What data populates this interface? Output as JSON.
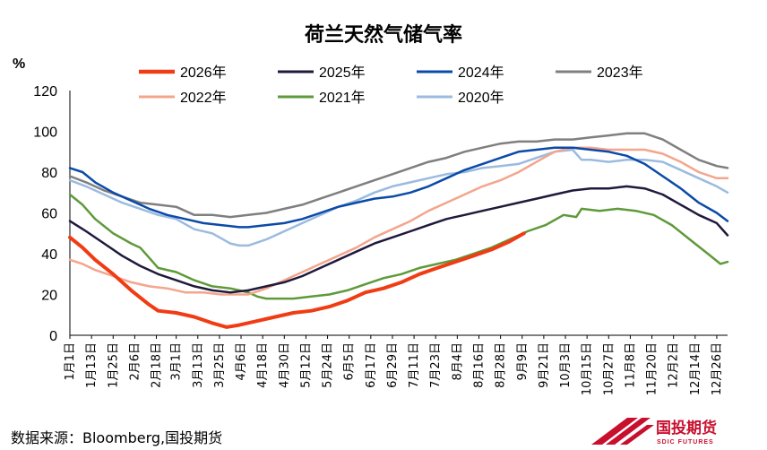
{
  "chart_data": {
    "type": "line",
    "title": "荷兰天然气储气率",
    "ylabel": "%",
    "ylim": [
      0,
      120
    ],
    "yticks": [
      0,
      20,
      40,
      60,
      80,
      100,
      120
    ],
    "x_ticks": [
      "1月1日",
      "1月13日",
      "1月25日",
      "2月6日",
      "2月18日",
      "3月1日",
      "3月13日",
      "3月25日",
      "4月6日",
      "4月18日",
      "4月30日",
      "5月12日",
      "5月24日",
      "6月5日",
      "6月17日",
      "6月29日",
      "7月11日",
      "7月23日",
      "8月4日",
      "8月16日",
      "8月28日",
      "9月9日",
      "9月21日",
      "10月3日",
      "10月15日",
      "10月27日",
      "11月8日",
      "11月20日",
      "12月2日",
      "12月14日",
      "12月26日"
    ],
    "x_tick_days": [
      1,
      13,
      25,
      37,
      49,
      60,
      72,
      84,
      96,
      108,
      120,
      132,
      144,
      156,
      168,
      180,
      192,
      204,
      216,
      228,
      240,
      252,
      264,
      276,
      288,
      300,
      312,
      324,
      336,
      348,
      360
    ],
    "legend_placement": "top",
    "grid": false,
    "series": [
      {
        "name": "2026年",
        "color": "#f03c14",
        "width": 4,
        "points": [
          [
            1,
            48
          ],
          [
            8,
            43
          ],
          [
            15,
            37
          ],
          [
            25,
            30
          ],
          [
            35,
            22
          ],
          [
            45,
            15
          ],
          [
            50,
            12
          ],
          [
            60,
            11
          ],
          [
            70,
            9
          ],
          [
            80,
            6
          ],
          [
            88,
            4
          ],
          [
            95,
            5
          ],
          [
            105,
            7
          ],
          [
            115,
            9
          ],
          [
            125,
            11
          ],
          [
            135,
            12
          ],
          [
            145,
            14
          ],
          [
            155,
            17
          ],
          [
            165,
            21
          ],
          [
            175,
            23
          ],
          [
            185,
            26
          ],
          [
            195,
            30
          ],
          [
            205,
            33
          ],
          [
            215,
            36
          ],
          [
            225,
            39
          ],
          [
            235,
            42
          ],
          [
            245,
            46
          ],
          [
            253,
            50
          ]
        ]
      },
      {
        "name": "2025年",
        "color": "#1f1a3c",
        "width": 2.5,
        "points": [
          [
            1,
            56
          ],
          [
            10,
            51
          ],
          [
            20,
            45
          ],
          [
            30,
            39
          ],
          [
            40,
            34
          ],
          [
            50,
            30
          ],
          [
            60,
            27
          ],
          [
            70,
            24
          ],
          [
            80,
            22
          ],
          [
            90,
            21
          ],
          [
            100,
            22
          ],
          [
            110,
            24
          ],
          [
            120,
            26
          ],
          [
            130,
            29
          ],
          [
            140,
            33
          ],
          [
            150,
            37
          ],
          [
            160,
            41
          ],
          [
            170,
            45
          ],
          [
            180,
            48
          ],
          [
            190,
            51
          ],
          [
            200,
            54
          ],
          [
            210,
            57
          ],
          [
            220,
            59
          ],
          [
            230,
            61
          ],
          [
            240,
            63
          ],
          [
            250,
            65
          ],
          [
            260,
            67
          ],
          [
            270,
            69
          ],
          [
            280,
            71
          ],
          [
            290,
            72
          ],
          [
            300,
            72
          ],
          [
            310,
            73
          ],
          [
            320,
            72
          ],
          [
            330,
            69
          ],
          [
            340,
            64
          ],
          [
            350,
            59
          ],
          [
            360,
            55
          ],
          [
            366,
            49
          ]
        ]
      },
      {
        "name": "2024年",
        "color": "#0b4aa8",
        "width": 2.5,
        "points": [
          [
            1,
            82
          ],
          [
            8,
            80
          ],
          [
            15,
            75
          ],
          [
            25,
            70
          ],
          [
            35,
            66
          ],
          [
            45,
            62
          ],
          [
            55,
            59
          ],
          [
            65,
            57
          ],
          [
            75,
            55
          ],
          [
            85,
            54
          ],
          [
            95,
            53
          ],
          [
            100,
            53
          ],
          [
            110,
            54
          ],
          [
            120,
            55
          ],
          [
            130,
            57
          ],
          [
            140,
            60
          ],
          [
            150,
            63
          ],
          [
            160,
            65
          ],
          [
            170,
            67
          ],
          [
            180,
            68
          ],
          [
            190,
            70
          ],
          [
            200,
            73
          ],
          [
            210,
            77
          ],
          [
            220,
            81
          ],
          [
            230,
            84
          ],
          [
            240,
            87
          ],
          [
            250,
            90
          ],
          [
            260,
            91
          ],
          [
            270,
            92
          ],
          [
            280,
            92
          ],
          [
            290,
            91
          ],
          [
            300,
            90
          ],
          [
            310,
            88
          ],
          [
            320,
            84
          ],
          [
            330,
            78
          ],
          [
            340,
            72
          ],
          [
            350,
            65
          ],
          [
            360,
            60
          ],
          [
            366,
            56
          ]
        ]
      },
      {
        "name": "2023年",
        "color": "#7f7f7f",
        "width": 2.5,
        "points": [
          [
            1,
            78
          ],
          [
            10,
            75
          ],
          [
            20,
            71
          ],
          [
            30,
            68
          ],
          [
            40,
            65
          ],
          [
            50,
            64
          ],
          [
            60,
            63
          ],
          [
            70,
            59
          ],
          [
            80,
            59
          ],
          [
            90,
            58
          ],
          [
            100,
            59
          ],
          [
            110,
            60
          ],
          [
            120,
            62
          ],
          [
            130,
            64
          ],
          [
            140,
            67
          ],
          [
            150,
            70
          ],
          [
            160,
            73
          ],
          [
            170,
            76
          ],
          [
            180,
            79
          ],
          [
            190,
            82
          ],
          [
            200,
            85
          ],
          [
            210,
            87
          ],
          [
            220,
            90
          ],
          [
            230,
            92
          ],
          [
            240,
            94
          ],
          [
            250,
            95
          ],
          [
            260,
            95
          ],
          [
            270,
            96
          ],
          [
            280,
            96
          ],
          [
            290,
            97
          ],
          [
            300,
            98
          ],
          [
            310,
            99
          ],
          [
            320,
            99
          ],
          [
            330,
            96
          ],
          [
            340,
            91
          ],
          [
            350,
            86
          ],
          [
            360,
            83
          ],
          [
            366,
            82
          ]
        ]
      },
      {
        "name": "2022年",
        "color": "#f4a58c",
        "width": 2.5,
        "points": [
          [
            1,
            37
          ],
          [
            8,
            35
          ],
          [
            15,
            32
          ],
          [
            25,
            29
          ],
          [
            35,
            26
          ],
          [
            45,
            24
          ],
          [
            55,
            23
          ],
          [
            65,
            21
          ],
          [
            75,
            21
          ],
          [
            85,
            20
          ],
          [
            95,
            20
          ],
          [
            100,
            20
          ],
          [
            110,
            23
          ],
          [
            120,
            27
          ],
          [
            130,
            31
          ],
          [
            140,
            35
          ],
          [
            150,
            39
          ],
          [
            160,
            43
          ],
          [
            170,
            48
          ],
          [
            180,
            52
          ],
          [
            190,
            56
          ],
          [
            200,
            61
          ],
          [
            210,
            65
          ],
          [
            220,
            69
          ],
          [
            230,
            73
          ],
          [
            240,
            76
          ],
          [
            250,
            80
          ],
          [
            260,
            85
          ],
          [
            270,
            90
          ],
          [
            280,
            92
          ],
          [
            290,
            92
          ],
          [
            300,
            91
          ],
          [
            310,
            91
          ],
          [
            320,
            91
          ],
          [
            330,
            89
          ],
          [
            340,
            85
          ],
          [
            350,
            80
          ],
          [
            360,
            77
          ],
          [
            366,
            77
          ]
        ]
      },
      {
        "name": "2021年",
        "color": "#5e9a3a",
        "width": 2.5,
        "points": [
          [
            1,
            69
          ],
          [
            8,
            64
          ],
          [
            15,
            57
          ],
          [
            25,
            50
          ],
          [
            35,
            45
          ],
          [
            40,
            43
          ],
          [
            45,
            38
          ],
          [
            50,
            33
          ],
          [
            60,
            31
          ],
          [
            70,
            27
          ],
          [
            80,
            24
          ],
          [
            90,
            23
          ],
          [
            95,
            22
          ],
          [
            100,
            21
          ],
          [
            105,
            19
          ],
          [
            110,
            18
          ],
          [
            120,
            18
          ],
          [
            125,
            18
          ],
          [
            135,
            19
          ],
          [
            145,
            20
          ],
          [
            155,
            22
          ],
          [
            165,
            25
          ],
          [
            175,
            28
          ],
          [
            185,
            30
          ],
          [
            195,
            33
          ],
          [
            205,
            35
          ],
          [
            215,
            37
          ],
          [
            225,
            40
          ],
          [
            235,
            43
          ],
          [
            245,
            47
          ],
          [
            255,
            51
          ],
          [
            265,
            54
          ],
          [
            275,
            59
          ],
          [
            282,
            58
          ],
          [
            285,
            62
          ],
          [
            295,
            61
          ],
          [
            305,
            62
          ],
          [
            315,
            61
          ],
          [
            325,
            59
          ],
          [
            335,
            54
          ],
          [
            345,
            47
          ],
          [
            355,
            40
          ],
          [
            362,
            35
          ],
          [
            366,
            36
          ]
        ]
      },
      {
        "name": "2020年",
        "color": "#9bbbe0",
        "width": 2.5,
        "points": [
          [
            1,
            76
          ],
          [
            10,
            73
          ],
          [
            20,
            69
          ],
          [
            30,
            65
          ],
          [
            40,
            62
          ],
          [
            50,
            59
          ],
          [
            60,
            57
          ],
          [
            70,
            52
          ],
          [
            80,
            50
          ],
          [
            90,
            45
          ],
          [
            95,
            44
          ],
          [
            100,
            44
          ],
          [
            110,
            47
          ],
          [
            120,
            51
          ],
          [
            130,
            55
          ],
          [
            140,
            59
          ],
          [
            150,
            63
          ],
          [
            160,
            66
          ],
          [
            170,
            70
          ],
          [
            180,
            73
          ],
          [
            190,
            75
          ],
          [
            200,
            77
          ],
          [
            210,
            79
          ],
          [
            220,
            80
          ],
          [
            230,
            82
          ],
          [
            240,
            83
          ],
          [
            250,
            84
          ],
          [
            260,
            87
          ],
          [
            270,
            90
          ],
          [
            280,
            91
          ],
          [
            285,
            86
          ],
          [
            290,
            86
          ],
          [
            300,
            85
          ],
          [
            310,
            86
          ],
          [
            320,
            86
          ],
          [
            330,
            85
          ],
          [
            340,
            81
          ],
          [
            350,
            77
          ],
          [
            360,
            73
          ],
          [
            366,
            70
          ]
        ]
      }
    ]
  },
  "unit_label": "%",
  "source_text": "数据来源：Bloomberg,国投期货",
  "logo": {
    "name": "国投期货",
    "sub": "SDIC FUTURES",
    "color": "#c8102e"
  }
}
